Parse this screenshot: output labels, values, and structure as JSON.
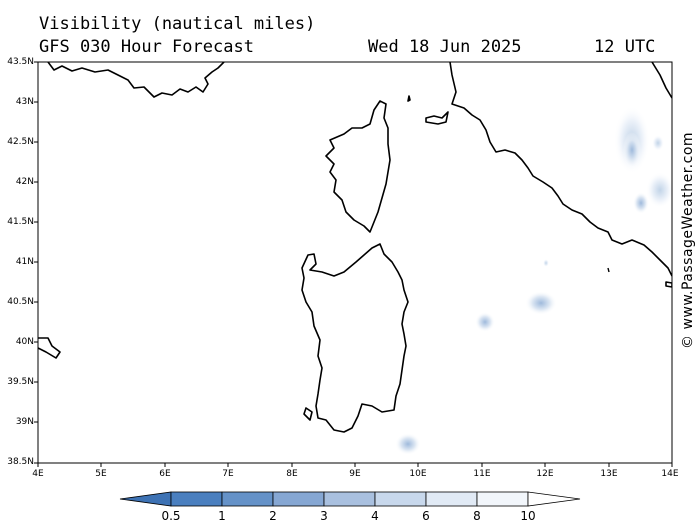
{
  "header": {
    "title_line1": "Visibility (nautical miles)",
    "title_line2": "GFS 030 Hour Forecast",
    "date": "Wed 18 Jun 2025",
    "time": "12 UTC"
  },
  "axes": {
    "lat_labels": [
      "43.5N",
      "43N",
      "42.5N",
      "42N",
      "41.5N",
      "41N",
      "40.5N",
      "40N",
      "39.5N",
      "39N",
      "38.5N"
    ],
    "lon_labels": [
      "4E",
      "5E",
      "6E",
      "7E",
      "8E",
      "9E",
      "10E",
      "11E",
      "12E",
      "13E",
      "14E"
    ]
  },
  "colorbar": {
    "labels": [
      "0.5",
      "1",
      "2",
      "3",
      "4",
      "6",
      "8",
      "10"
    ],
    "colors": [
      "#3d72b4",
      "#5588c4",
      "#7aa0d0",
      "#9fbadc",
      "#c2d4e8",
      "#dde7f3",
      "#eef3fa",
      "#ffffff"
    ]
  },
  "credit": "© www.PassageWeather.com",
  "map": {
    "region": "Tyrrhenian Sea, Corsica, Sardinia, western Italy",
    "lat_range": [
      38.5,
      43.5
    ],
    "lon_range": [
      4,
      14
    ]
  }
}
